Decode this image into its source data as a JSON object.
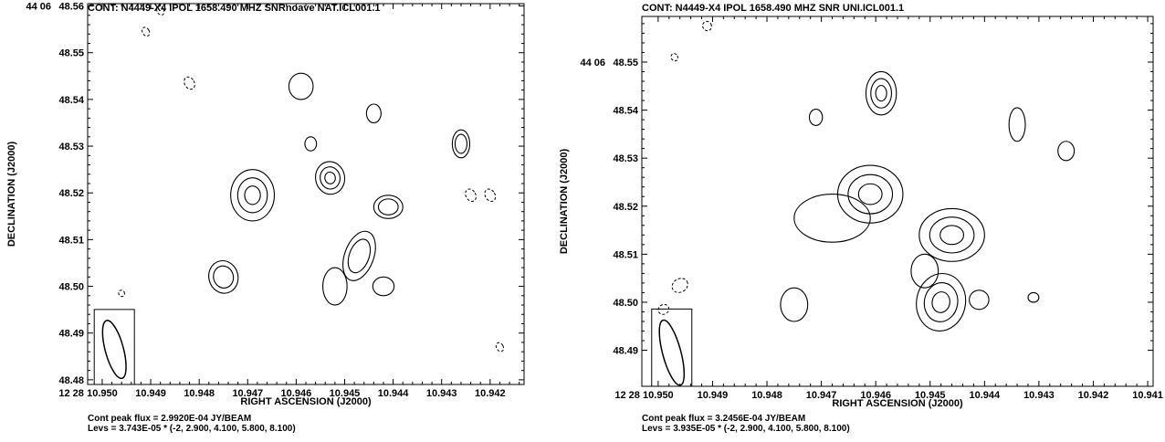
{
  "chart_data": [
    {
      "type": "contour",
      "title": "CONT: N4449-X4  IPOL  1658.490 MHZ  SNRnoave NAT.ICL001.1",
      "xlabel": "RIGHT ASCENSION (J2000)",
      "ylabel": "DECLINATION (J2000)",
      "ra_prefix": "12 28",
      "dec_prefix": "44 06",
      "x_ticks": [
        "10.950",
        "10.949",
        "10.948",
        "10.947",
        "10.946",
        "10.945",
        "10.944",
        "10.943",
        "10.942"
      ],
      "y_ticks": [
        "48.56",
        "48.55",
        "48.54",
        "48.53",
        "48.52",
        "48.51",
        "48.50",
        "48.49",
        "48.48"
      ],
      "xlim": [
        10.9503,
        10.9413
      ],
      "ylim": [
        48.479,
        48.5605
      ],
      "peak_flux": "Cont peak flux =  2.9920E-04 JY/BEAM",
      "levels_text": "Levs = 3.743E-05 * (-2, 2.900, 4.100, 5.800, 8.100)",
      "beam": {
        "x": 10.94975,
        "y": 48.4865,
        "maj_arcsec": 0.0064,
        "min_arcsec": 0.0042,
        "pa_deg": -15
      },
      "sources": [
        {
          "x": 10.9469,
          "y": 48.5195,
          "a": 0.00045,
          "b": 0.0055,
          "rot": 0,
          "levels": 3
        },
        {
          "x": 10.9459,
          "y": 48.5428,
          "a": 0.00025,
          "b": 0.0028,
          "rot": 0,
          "levels": 1
        },
        {
          "x": 10.9457,
          "y": 48.5305,
          "a": 0.00012,
          "b": 0.0015,
          "rot": 0,
          "levels": 1
        },
        {
          "x": 10.9453,
          "y": 48.5232,
          "a": 0.0003,
          "b": 0.0035,
          "rot": -10,
          "levels": 3
        },
        {
          "x": 10.9447,
          "y": 48.5065,
          "a": 0.0003,
          "b": 0.0055,
          "rot": 20,
          "levels": 2
        },
        {
          "x": 10.9452,
          "y": 48.5,
          "a": 0.00025,
          "b": 0.004,
          "rot": 0,
          "levels": 1
        },
        {
          "x": 10.9475,
          "y": 48.502,
          "a": 0.0003,
          "b": 0.0035,
          "rot": -15,
          "levels": 2
        },
        {
          "x": 10.9441,
          "y": 48.517,
          "a": 0.0003,
          "b": 0.0025,
          "rot": 0,
          "levels": 2
        },
        {
          "x": 10.9442,
          "y": 48.5,
          "a": 0.00022,
          "b": 0.002,
          "rot": 0,
          "levels": 1
        },
        {
          "x": 10.9444,
          "y": 48.537,
          "a": 0.00015,
          "b": 0.002,
          "rot": 0,
          "levels": 1
        },
        {
          "x": 10.9426,
          "y": 48.5305,
          "a": 0.00018,
          "b": 0.003,
          "rot": 0,
          "levels": 2
        }
      ],
      "negative": [
        {
          "x": 10.9482,
          "y": 48.5435,
          "a": 0.0001,
          "b": 0.0014
        },
        {
          "x": 10.9424,
          "y": 48.5195,
          "a": 0.0001,
          "b": 0.0014
        },
        {
          "x": 10.942,
          "y": 48.5195,
          "a": 0.0001,
          "b": 0.0014
        },
        {
          "x": 10.9496,
          "y": 48.4985,
          "a": 6e-05,
          "b": 0.0007
        },
        {
          "x": 10.9418,
          "y": 48.487,
          "a": 7e-05,
          "b": 0.001
        },
        {
          "x": 10.9491,
          "y": 48.5545,
          "a": 7e-05,
          "b": 0.001
        },
        {
          "x": 10.9488,
          "y": 48.559,
          "a": 7e-05,
          "b": 0.001
        }
      ]
    },
    {
      "type": "contour",
      "title": "CONT: N4449-X4  IPOL  1658.490 MHZ  SNR UNI.ICL001.1",
      "xlabel": "RIGHT ASCENSION (J2000)",
      "ylabel": "DECLINATION (J2000)",
      "ra_prefix": "12 28",
      "dec_prefix": "44 06",
      "x_ticks": [
        "10.950",
        "10.949",
        "10.948",
        "10.947",
        "10.946",
        "10.945",
        "10.944",
        "10.943",
        "10.942",
        "10.941"
      ],
      "y_ticks": [
        "48.55",
        "48.54",
        "48.53",
        "48.52",
        "48.51",
        "48.50",
        "48.49"
      ],
      "xlim": [
        10.9503,
        10.9409
      ],
      "ylim": [
        48.4825,
        48.5595
      ],
      "peak_flux": "Cont peak flux =  3.2456E-04 JY/BEAM",
      "levels_text": "Levs = 3.935E-05 * (-2, 2.900, 4.100, 5.800, 8.100)",
      "beam": {
        "x": 10.94975,
        "y": 48.4895,
        "maj_arcsec": 0.007,
        "min_arcsec": 0.0046,
        "pa_deg": -15
      },
      "sources": [
        {
          "x": 10.9459,
          "y": 48.5435,
          "a": 0.00028,
          "b": 0.0045,
          "rot": 0,
          "levels": 3
        },
        {
          "x": 10.9461,
          "y": 48.5225,
          "a": 0.0006,
          "b": 0.006,
          "rot": 0,
          "levels": 3
        },
        {
          "x": 10.9468,
          "y": 48.5175,
          "a": 0.0007,
          "b": 0.005,
          "rot": 0,
          "levels": 1
        },
        {
          "x": 10.9446,
          "y": 48.514,
          "a": 0.0006,
          "b": 0.0055,
          "rot": 0,
          "levels": 3
        },
        {
          "x": 10.9448,
          "y": 48.5,
          "a": 0.00045,
          "b": 0.006,
          "rot": 10,
          "levels": 3
        },
        {
          "x": 10.9451,
          "y": 48.5065,
          "a": 0.00025,
          "b": 0.0035,
          "rot": 0,
          "levels": 1
        },
        {
          "x": 10.9441,
          "y": 48.5005,
          "a": 0.00018,
          "b": 0.002,
          "rot": 0,
          "levels": 1
        },
        {
          "x": 10.9475,
          "y": 48.4995,
          "a": 0.00025,
          "b": 0.0035,
          "rot": 0,
          "levels": 1
        },
        {
          "x": 10.9471,
          "y": 48.5385,
          "a": 0.00012,
          "b": 0.0017,
          "rot": 0,
          "levels": 1
        },
        {
          "x": 10.9434,
          "y": 48.537,
          "a": 0.00015,
          "b": 0.0035,
          "rot": 0,
          "levels": 1
        },
        {
          "x": 10.9425,
          "y": 48.5315,
          "a": 0.00015,
          "b": 0.002,
          "rot": 0,
          "levels": 1
        },
        {
          "x": 10.9431,
          "y": 48.501,
          "a": 0.0001,
          "b": 0.001,
          "rot": 0,
          "levels": 1
        }
      ],
      "negative": [
        {
          "x": 10.9496,
          "y": 48.5035,
          "a": 0.00015,
          "b": 0.0014
        },
        {
          "x": 10.9499,
          "y": 48.4985,
          "a": 0.0001,
          "b": 0.001
        },
        {
          "x": 10.9491,
          "y": 48.5575,
          "a": 8e-05,
          "b": 0.001
        },
        {
          "x": 10.9497,
          "y": 48.551,
          "a": 6e-05,
          "b": 0.0008
        }
      ]
    }
  ]
}
